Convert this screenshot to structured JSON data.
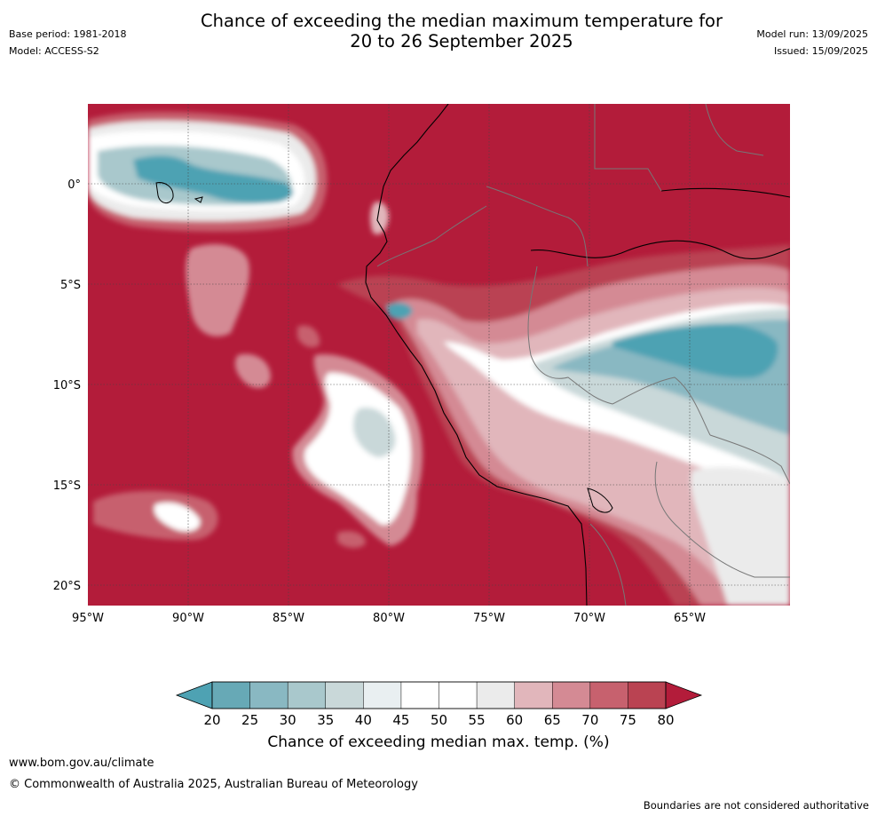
{
  "header": {
    "title_line1": "Chance of exceeding the median maximum temperature for",
    "title_line2": "20 to 26 September 2025",
    "base_period": "Base period: 1981-2018",
    "model": "Model: ACCESS-S2",
    "model_run": "Model run: 13/09/2025",
    "issued": "Issued: 15/09/2025"
  },
  "map": {
    "lon_range": [
      -95,
      -60
    ],
    "lat_range": [
      -21,
      4
    ],
    "lon_ticks": [
      "95°W",
      "90°W",
      "85°W",
      "80°W",
      "75°W",
      "70°W",
      "65°W"
    ],
    "lat_ticks": [
      "0°",
      "5°S",
      "10°S",
      "15°S",
      "20°S"
    ],
    "background_color": "#b31c3a"
  },
  "colorbar": {
    "title": "Chance of exceeding median max. temp. (%)",
    "tick_labels": [
      "20",
      "25",
      "30",
      "35",
      "40",
      "45",
      "50",
      "55",
      "60",
      "65",
      "70",
      "75",
      "80"
    ],
    "bin_colors": [
      "#67a9b6",
      "#89b8c2",
      "#a9c8cc",
      "#c9d8d9",
      "#e9eff1",
      "#ffffff",
      "#ffffff",
      "#ebebeb",
      "#e1b6bb",
      "#d48a94",
      "#c7616e",
      "#ba4352"
    ],
    "under_color": "#4ea2b3",
    "over_color": "#b31c3a"
  },
  "footer": {
    "url": "www.bom.gov.au/climate",
    "copyright": "© Commonwealth of Australia 2025, Australian Bureau of Meteorology",
    "note": "Boundaries are not considered authoritative"
  }
}
